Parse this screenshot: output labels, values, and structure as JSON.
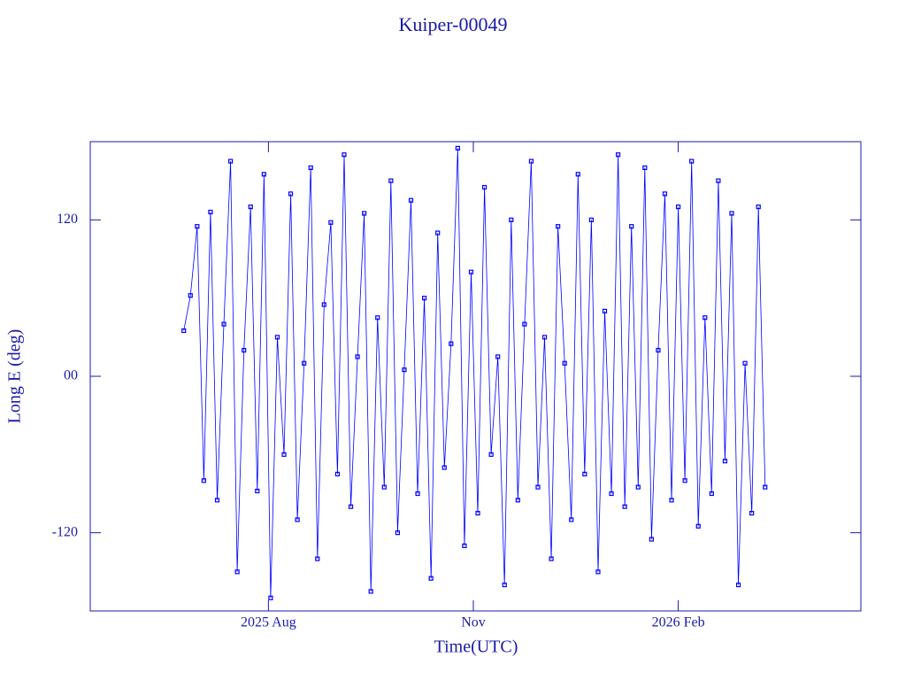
{
  "chart_data": {
    "type": "line",
    "title": "Kuiper-00049",
    "x_label": "Time(UTC)",
    "y_label": "Long E (deg)",
    "color": "#0000ff",
    "xlim": [
      "2025-05-13",
      "2026-04-24"
    ],
    "xticks": [
      {
        "value": "2025-08-01",
        "label": "2025 Aug"
      },
      {
        "value": "2025-11-01",
        "label": "Nov"
      },
      {
        "value": "2026-02-01",
        "label": "2026 Feb"
      }
    ],
    "ylim": [
      -180,
      180
    ],
    "yticks": [
      {
        "value": -120,
        "label": "-120"
      },
      {
        "value": 0,
        "label": "00"
      },
      {
        "value": 120,
        "label": "120"
      }
    ],
    "x": [
      "2025-06-24",
      "2025-06-27",
      "2025-06-30",
      "2025-07-03",
      "2025-07-06",
      "2025-07-09",
      "2025-07-12",
      "2025-07-15",
      "2025-07-18",
      "2025-07-21",
      "2025-07-24",
      "2025-07-27",
      "2025-07-30",
      "2025-08-02",
      "2025-08-05",
      "2025-08-08",
      "2025-08-11",
      "2025-08-14",
      "2025-08-17",
      "2025-08-20",
      "2025-08-23",
      "2025-08-26",
      "2025-08-29",
      "2025-09-01",
      "2025-09-04",
      "2025-09-07",
      "2025-09-10",
      "2025-09-13",
      "2025-09-16",
      "2025-09-19",
      "2025-09-22",
      "2025-09-25",
      "2025-09-28",
      "2025-10-01",
      "2025-10-04",
      "2025-10-07",
      "2025-10-10",
      "2025-10-13",
      "2025-10-16",
      "2025-10-19",
      "2025-10-22",
      "2025-10-25",
      "2025-10-28",
      "2025-10-31",
      "2025-11-03",
      "2025-11-06",
      "2025-11-09",
      "2025-11-12",
      "2025-11-15",
      "2025-11-18",
      "2025-11-21",
      "2025-11-24",
      "2025-11-27",
      "2025-11-30",
      "2025-12-03",
      "2025-12-06",
      "2025-12-09",
      "2025-12-12",
      "2025-12-15",
      "2025-12-18",
      "2025-12-21",
      "2025-12-24",
      "2025-12-27",
      "2025-12-30",
      "2026-01-02",
      "2026-01-05",
      "2026-01-08",
      "2026-01-11",
      "2026-01-14",
      "2026-01-17",
      "2026-01-20",
      "2026-01-23",
      "2026-01-26",
      "2026-01-29",
      "2026-02-01",
      "2026-02-04",
      "2026-02-07",
      "2026-02-10",
      "2026-02-13",
      "2026-02-16",
      "2026-02-19",
      "2026-02-22",
      "2026-02-25",
      "2026-02-28",
      "2026-03-03",
      "2026-03-06",
      "2026-03-09",
      "2026-03-12"
    ],
    "values": [
      35,
      62,
      115,
      -80,
      126,
      -95,
      40,
      165,
      -150,
      20,
      130,
      -88,
      155,
      -170,
      30,
      -60,
      140,
      -110,
      10,
      160,
      -140,
      55,
      118,
      -75,
      170,
      -100,
      15,
      125,
      -165,
      45,
      -85,
      150,
      -120,
      5,
      135,
      -90,
      60,
      -155,
      110,
      -70,
      25,
      175,
      -130,
      80,
      -105,
      145,
      -60,
      15,
      -160,
      120,
      -95,
      40,
      165,
      -85,
      30,
      -140,
      115,
      10,
      -110,
      155,
      -75,
      120,
      -150,
      50,
      -90,
      170,
      -100,
      115,
      -85,
      160,
      -125,
      20,
      140,
      -95,
      130,
      -80,
      165,
      -115,
      45,
      -90,
      150,
      -65,
      125,
      -160,
      10,
      -105,
      130,
      -85
    ]
  }
}
